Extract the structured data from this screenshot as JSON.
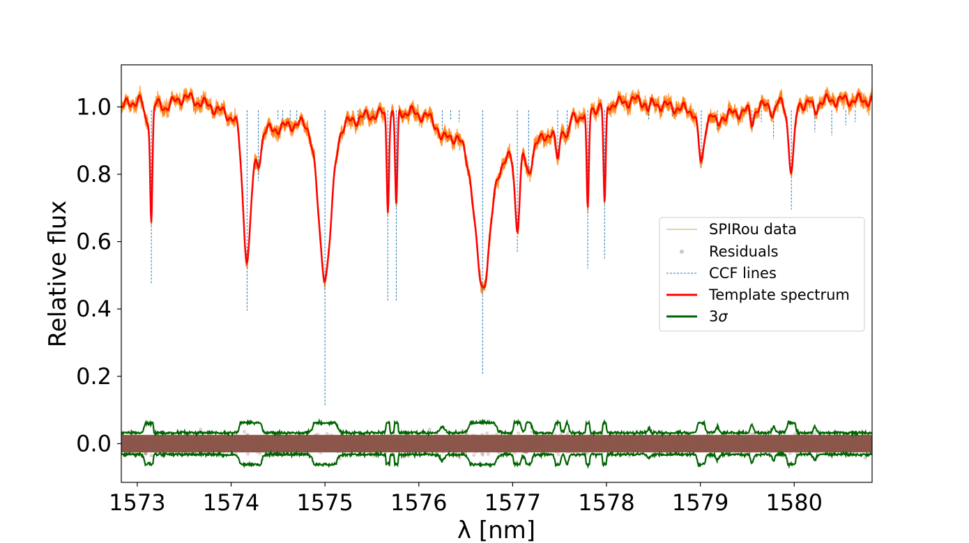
{
  "chart_data": {
    "type": "line",
    "title": "",
    "xlabel": "λ [nm]",
    "ylabel": "Relative flux",
    "xlim": [
      1572.83,
      1580.83
    ],
    "ylim": [
      -0.115,
      1.125
    ],
    "xticks": [
      1573,
      1574,
      1575,
      1576,
      1577,
      1578,
      1579,
      1580
    ],
    "xtick_labels": [
      "1573",
      "1574",
      "1575",
      "1576",
      "1577",
      "1578",
      "1579",
      "1580"
    ],
    "yticks": [
      0.0,
      0.2,
      0.4,
      0.6,
      0.8,
      1.0
    ],
    "ytick_labels": [
      "0.0",
      "0.2",
      "0.4",
      "0.6",
      "0.8",
      "1.0"
    ],
    "grid": false,
    "legend_position": "center-right",
    "legend": [
      {
        "label": "SPIRou data",
        "color": "#ff7f0e"
      },
      {
        "label": "Residuals",
        "color": "#8c564b"
      },
      {
        "label": "CCF lines",
        "color": "#1f77b4"
      },
      {
        "label": "Template spectrum",
        "color": "#ff0000"
      },
      {
        "label": "3",
        "sigma": "σ",
        "color": "#006400"
      }
    ],
    "continuum": [
      [
        1572.83,
        1.0
      ],
      [
        1573.0,
        1.02
      ],
      [
        1573.3,
        1.0
      ],
      [
        1573.5,
        1.03
      ],
      [
        1573.8,
        1.0
      ],
      [
        1574.0,
        0.97
      ],
      [
        1574.4,
        0.93
      ],
      [
        1574.7,
        0.95
      ],
      [
        1575.2,
        0.95
      ],
      [
        1575.4,
        0.97
      ],
      [
        1575.6,
        0.98
      ],
      [
        1575.9,
        0.985
      ],
      [
        1576.1,
        0.97
      ],
      [
        1576.3,
        0.92
      ],
      [
        1576.5,
        0.89
      ],
      [
        1576.9,
        0.84
      ],
      [
        1577.3,
        0.9
      ],
      [
        1577.5,
        0.95
      ],
      [
        1577.7,
        0.97
      ],
      [
        1577.9,
        1.0
      ],
      [
        1578.3,
        1.02
      ],
      [
        1578.7,
        1.0
      ],
      [
        1579.2,
        0.97
      ],
      [
        1579.5,
        0.99
      ],
      [
        1579.8,
        1.01
      ],
      [
        1580.1,
        1.01
      ],
      [
        1580.4,
        1.02
      ],
      [
        1580.83,
        1.02
      ]
    ],
    "absorption_lines": [
      {
        "center": 1573.1,
        "depth": 0.06,
        "width": 0.025
      },
      {
        "center": 1573.15,
        "depth": 0.34,
        "width": 0.012
      },
      {
        "center": 1574.17,
        "depth": 0.4,
        "width": 0.045
      },
      {
        "center": 1574.29,
        "depth": 0.1,
        "width": 0.03
      },
      {
        "center": 1575.0,
        "depth": 0.45,
        "width": 0.07
      },
      {
        "center": 1575.67,
        "depth": 0.28,
        "width": 0.012
      },
      {
        "center": 1575.76,
        "depth": 0.28,
        "width": 0.012
      },
      {
        "center": 1576.25,
        "depth": 0.03,
        "width": 0.03
      },
      {
        "center": 1576.68,
        "depth": 0.4,
        "width": 0.08
      },
      {
        "center": 1577.05,
        "depth": 0.22,
        "width": 0.025
      },
      {
        "center": 1577.17,
        "depth": 0.08,
        "width": 0.03
      },
      {
        "center": 1577.48,
        "depth": 0.1,
        "width": 0.025
      },
      {
        "center": 1577.58,
        "depth": 0.05,
        "width": 0.02
      },
      {
        "center": 1577.8,
        "depth": 0.3,
        "width": 0.012
      },
      {
        "center": 1577.98,
        "depth": 0.3,
        "width": 0.012
      },
      {
        "center": 1578.45,
        "depth": 0.02,
        "width": 0.02
      },
      {
        "center": 1579.01,
        "depth": 0.15,
        "width": 0.03
      },
      {
        "center": 1579.18,
        "depth": 0.03,
        "width": 0.02
      },
      {
        "center": 1579.55,
        "depth": 0.04,
        "width": 0.02
      },
      {
        "center": 1579.78,
        "depth": 0.03,
        "width": 0.02
      },
      {
        "center": 1579.97,
        "depth": 0.2,
        "width": 0.03
      },
      {
        "center": 1580.22,
        "depth": 0.03,
        "width": 0.02
      }
    ],
    "ccf_lines": [
      {
        "x": 1573.15,
        "ymin": 0.475
      },
      {
        "x": 1574.17,
        "ymin": 0.395
      },
      {
        "x": 1574.29,
        "ymin": 0.78
      },
      {
        "x": 1574.5,
        "ymin": 0.96
      },
      {
        "x": 1574.55,
        "ymin": 0.96
      },
      {
        "x": 1574.63,
        "ymin": 0.96
      },
      {
        "x": 1574.7,
        "ymin": 0.96
      },
      {
        "x": 1575.0,
        "ymin": 0.11
      },
      {
        "x": 1575.35,
        "ymin": 0.96
      },
      {
        "x": 1575.42,
        "ymin": 0.96
      },
      {
        "x": 1575.52,
        "ymin": 0.96
      },
      {
        "x": 1575.67,
        "ymin": 0.425
      },
      {
        "x": 1575.76,
        "ymin": 0.425
      },
      {
        "x": 1576.25,
        "ymin": 0.93
      },
      {
        "x": 1576.34,
        "ymin": 0.96
      },
      {
        "x": 1576.43,
        "ymin": 0.955
      },
      {
        "x": 1576.68,
        "ymin": 0.205
      },
      {
        "x": 1577.05,
        "ymin": 0.57
      },
      {
        "x": 1577.17,
        "ymin": 0.8
      },
      {
        "x": 1577.48,
        "ymin": 0.86
      },
      {
        "x": 1577.58,
        "ymin": 0.9
      },
      {
        "x": 1577.8,
        "ymin": 0.52
      },
      {
        "x": 1577.98,
        "ymin": 0.55
      },
      {
        "x": 1578.45,
        "ymin": 0.96
      },
      {
        "x": 1578.7,
        "ymin": 0.97
      },
      {
        "x": 1579.01,
        "ymin": 0.82
      },
      {
        "x": 1579.18,
        "ymin": 0.93
      },
      {
        "x": 1579.55,
        "ymin": 0.925
      },
      {
        "x": 1579.65,
        "ymin": 0.955
      },
      {
        "x": 1579.78,
        "ymin": 0.905
      },
      {
        "x": 1579.97,
        "ymin": 0.695
      },
      {
        "x": 1580.22,
        "ymin": 0.925
      },
      {
        "x": 1580.4,
        "ymin": 0.915
      },
      {
        "x": 1580.55,
        "ymin": 0.945
      },
      {
        "x": 1580.65,
        "ymin": 0.955
      }
    ],
    "ccf_line_top": 0.99,
    "data_noise_scatter": 0.025,
    "residual_scatter": 0.02,
    "sigma_band": 0.032,
    "colors": {
      "data": "#ff7f0e",
      "template": "#ff0000",
      "residuals": "#8c564b",
      "ccf": "#1f77b4",
      "sigma": "#006400"
    }
  }
}
